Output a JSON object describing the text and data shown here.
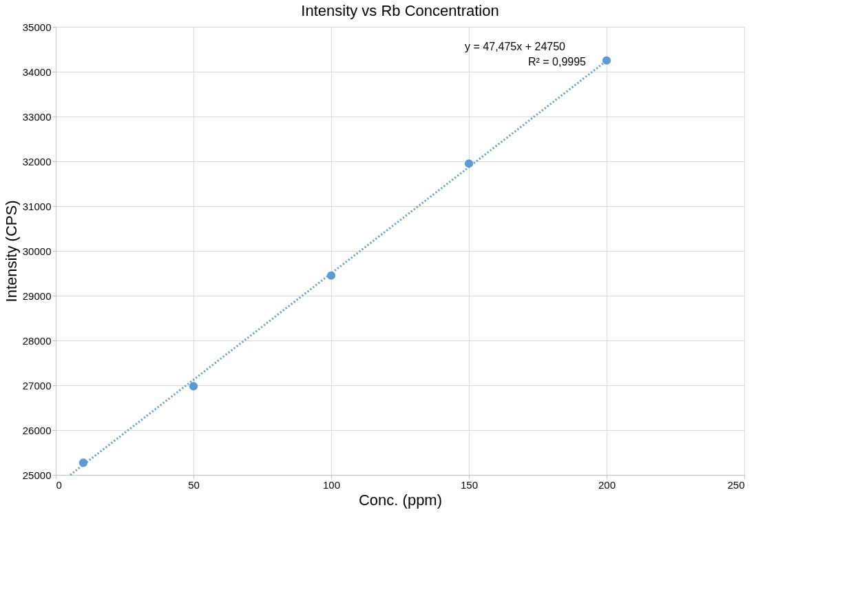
{
  "chart_data": {
    "type": "scatter",
    "title": "Intensity vs Rb Concentration",
    "xlabel": "Conc. (ppm)",
    "ylabel": "Intensity (CPS)",
    "x": [
      10,
      50,
      100,
      150,
      200
    ],
    "series": [
      {
        "color": "#5b9bd5",
        "values": [
          25270,
          26980,
          29450,
          31950,
          34250
        ],
        "marker": "circle"
      },
      {
        "type": "line",
        "color": "#5b9bd5",
        "x": [
          5.3,
          200
        ],
        "values": [
          25001.6,
          34245
        ],
        "line_style": "dotted",
        "marker": "none"
      }
    ],
    "annotations": [
      "y = 47,475x + 24750",
      "R² = 0,9995"
    ],
    "xlim": [
      0,
      250
    ],
    "xticks": [
      0,
      50,
      100,
      150,
      200,
      250
    ],
    "ylim": [
      25000,
      35000
    ],
    "yticks": [
      25000,
      26000,
      27000,
      28000,
      29000,
      30000,
      31000,
      32000,
      33000,
      34000,
      35000
    ],
    "grid": true
  }
}
